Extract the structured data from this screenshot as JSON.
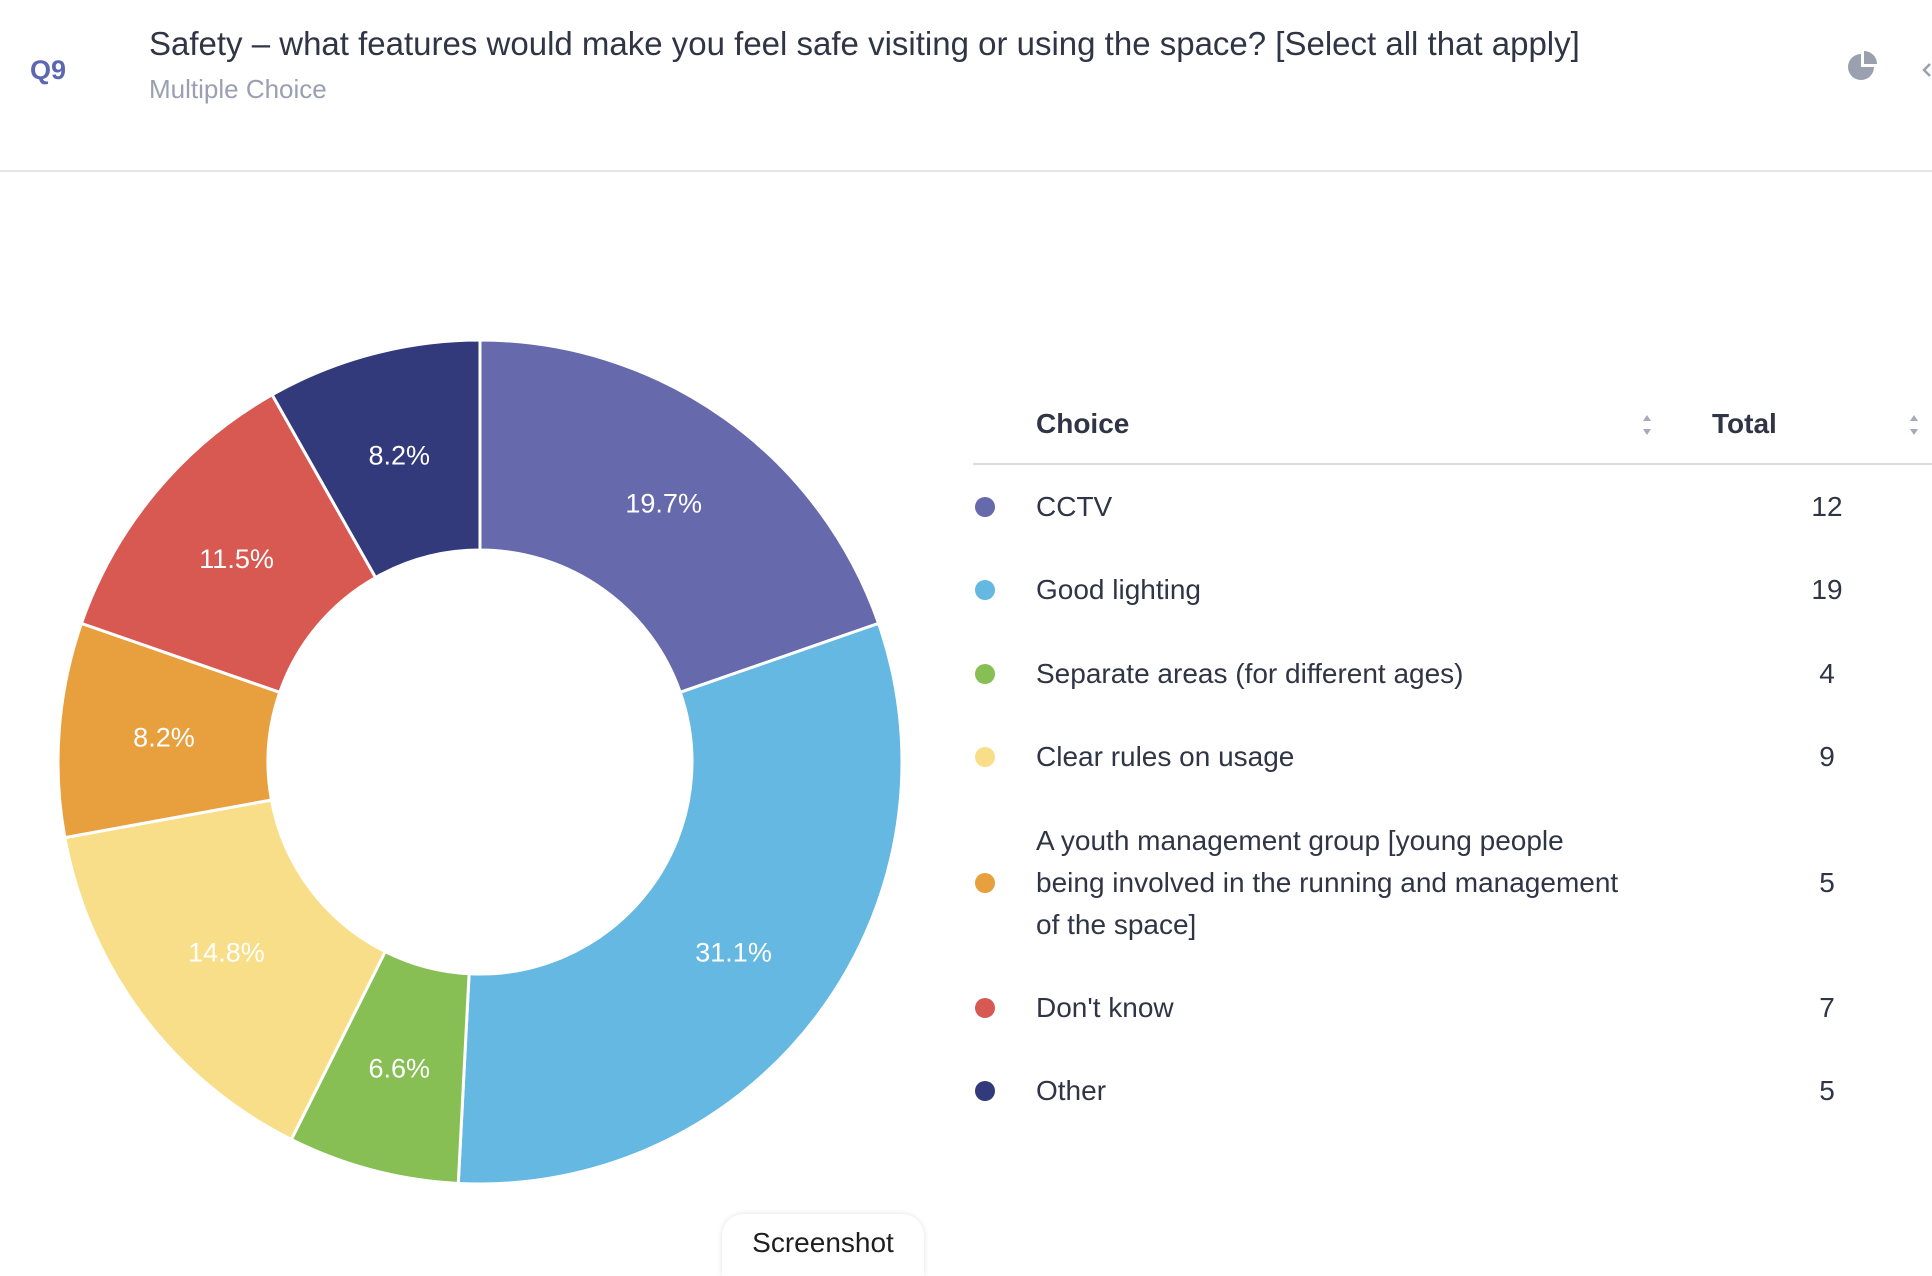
{
  "question": {
    "number": "Q9",
    "title": "Safety – what features would make you feel safe visiting or using the space? [Select all that apply]",
    "type": "Multiple Choice"
  },
  "table": {
    "choice_header": "Choice",
    "total_header": "Total"
  },
  "tooltip": "Screenshot",
  "chart_data": {
    "type": "pie",
    "donut": true,
    "legend_placement": "right",
    "slices": [
      {
        "label": "CCTV",
        "value": 12,
        "percent_label": "19.7%",
        "color": "#6669ab"
      },
      {
        "label": "Good lighting",
        "value": 19,
        "percent_label": "31.1%",
        "color": "#64b8e1"
      },
      {
        "label": "Separate areas (for different ages)",
        "value": 4,
        "percent_label": "6.6%",
        "color": "#88bf54"
      },
      {
        "label": "Clear rules on usage",
        "value": 9,
        "percent_label": "14.8%",
        "color": "#f8de88"
      },
      {
        "label": "A youth management group [young people being involved in the running and management of the space]",
        "value": 5,
        "percent_label": "8.2%",
        "color": "#e8a03f"
      },
      {
        "label": "Don't know",
        "value": 7,
        "percent_label": "11.5%",
        "color": "#d85852"
      },
      {
        "label": "Other",
        "value": 5,
        "percent_label": "8.2%",
        "color": "#333a7c"
      }
    ]
  }
}
